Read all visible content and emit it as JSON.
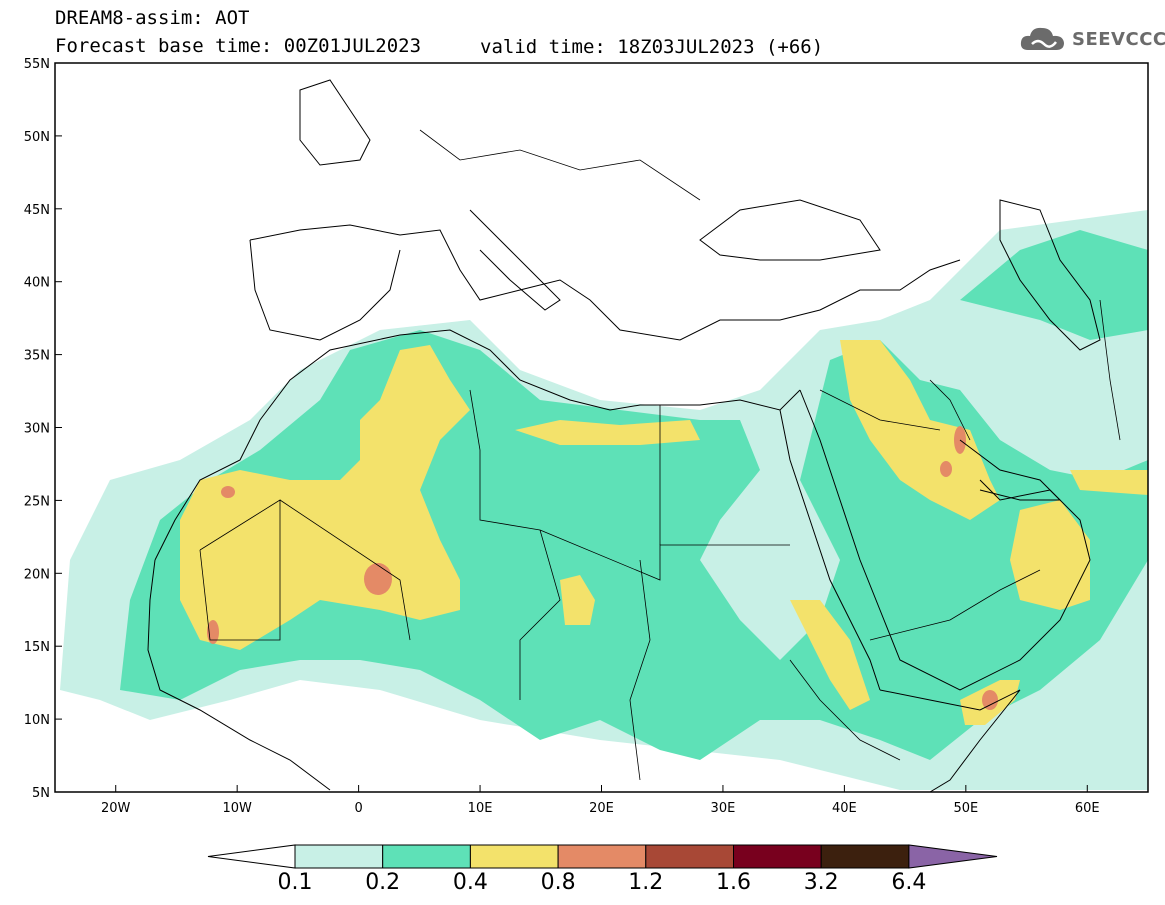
{
  "header": {
    "title_line1": "DREAM8-assim: AOT",
    "title_line2": "Forecast base time: 00Z01JUL2023",
    "valid_time": "valid time: 18Z03JUL2023 (+66)"
  },
  "logo": {
    "text": "SEEVCCC",
    "icon": "cloud-icon"
  },
  "map": {
    "lat_labels": [
      "55N",
      "50N",
      "45N",
      "40N",
      "35N",
      "30N",
      "25N",
      "20N",
      "15N",
      "10N",
      "5N"
    ],
    "lon_labels": [
      "20W",
      "10W",
      "0",
      "10E",
      "20E",
      "30E",
      "40E",
      "50E",
      "60E"
    ],
    "lon_range": [
      -25,
      65
    ],
    "lat_range": [
      5,
      55
    ]
  },
  "colorbar": {
    "labels": [
      "0.1",
      "0.2",
      "0.4",
      "0.8",
      "1.2",
      "1.6",
      "3.2",
      "6.4"
    ],
    "colors": [
      "#ffffff",
      "#c8f0e6",
      "#5ee1b7",
      "#f3e26b",
      "#e48a66",
      "#a84836",
      "#78001e",
      "#3c200e",
      "#8a64a6"
    ]
  }
}
